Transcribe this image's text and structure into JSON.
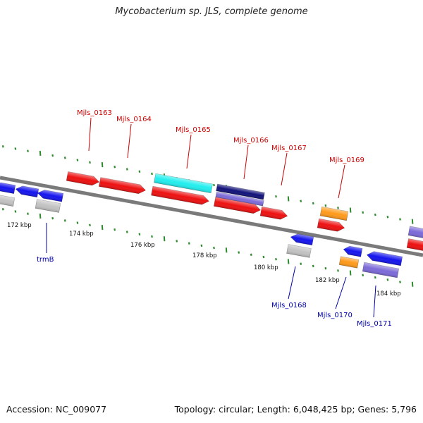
{
  "title": "Mycobacterium sp. JLS, complete genome",
  "footer": {
    "accession": "Accession: NC_009077",
    "topology": "Topology: circular; Length: 6,048,425 bp; Genes: 5,796"
  },
  "colors": {
    "red": "#ee1111",
    "blue": "#1515ee",
    "cyan": "#22eeee",
    "navy": "#12127a",
    "purple": "#7c6ad8",
    "gray": "#c2c2c2",
    "orange": "#ff9a1a",
    "tick": "#2c8a2c",
    "label_top": "#cc0000",
    "label_bottom": "#0000aa",
    "backbone": "#7a7a7a"
  },
  "scale_labels": [
    "172 kbp",
    "174 kbp",
    "176 kbp",
    "178 kbp",
    "180 kbp",
    "182 kbp",
    "184 kbp"
  ],
  "gene_labels_top": [
    "Mjls_0163",
    "Mjls_0164",
    "Mjls_0165",
    "Mjls_0166",
    "Mjls_0167",
    "Mjls_0169"
  ],
  "gene_labels_bottom": [
    "trmB",
    "Mjls_0168",
    "Mjls_0170",
    "Mjls_0171"
  ]
}
